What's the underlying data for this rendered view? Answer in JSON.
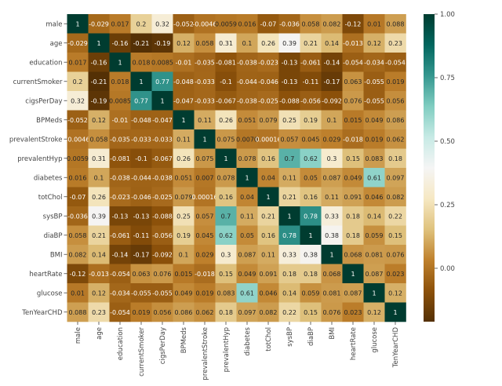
{
  "chart_data": {
    "type": "heatmap",
    "variables": [
      "male",
      "age",
      "education",
      "currentSmoker",
      "cigsPerDay",
      "BPMeds",
      "prevalentStroke",
      "prevalentHyp",
      "diabetes",
      "totChol",
      "sysBP",
      "diaBP",
      "BMI",
      "heartRate",
      "glucose",
      "TenYearCHD"
    ],
    "cell_labels": [
      [
        "1",
        "-0.029",
        "0.017",
        "0.2",
        "0.32",
        "-0.052",
        "-0.0046",
        "0.0059",
        "0.016",
        "-0.07",
        "-0.036",
        "0.058",
        "0.082",
        "-0.12",
        "0.01",
        "0.088"
      ],
      [
        "-0.029",
        "1",
        "-0.16",
        "-0.21",
        "-0.19",
        "0.12",
        "0.058",
        "0.31",
        "0.1",
        "0.26",
        "0.39",
        "0.21",
        "0.14",
        "-0.013",
        "0.12",
        "0.23"
      ],
      [
        "0.017",
        "-0.16",
        "1",
        "0.018",
        "0.0085",
        "-0.01",
        "-0.035",
        "-0.081",
        "-0.038",
        "-0.023",
        "-0.13",
        "-0.061",
        "-0.14",
        "-0.054",
        "-0.034",
        "-0.054"
      ],
      [
        "0.2",
        "-0.21",
        "0.018",
        "1",
        "0.77",
        "-0.048",
        "-0.033",
        "-0.1",
        "-0.044",
        "-0.046",
        "-0.13",
        "-0.11",
        "-0.17",
        "0.063",
        "-0.055",
        "0.019"
      ],
      [
        "0.32",
        "-0.19",
        "0.0085",
        "0.77",
        "1",
        "-0.047",
        "-0.033",
        "-0.067",
        "-0.038",
        "-0.025",
        "-0.088",
        "-0.056",
        "-0.092",
        "0.076",
        "-0.055",
        "0.056"
      ],
      [
        "-0.052",
        "0.12",
        "-0.01",
        "-0.048",
        "-0.047",
        "1",
        "0.11",
        "0.26",
        "0.051",
        "0.079",
        "0.25",
        "0.19",
        "0.1",
        "0.015",
        "0.049",
        "0.086"
      ],
      [
        "-0.0046",
        "0.058",
        "-0.035",
        "-0.033",
        "-0.033",
        "0.11",
        "1",
        "0.075",
        "0.0070",
        "0.00016",
        "0.057",
        "0.045",
        "0.029",
        "-0.018",
        "0.019",
        "0.062"
      ],
      [
        "0.0059",
        "0.31",
        "-0.081",
        "-0.1",
        "-0.067",
        "0.26",
        "0.075",
        "1",
        "0.078",
        "0.16",
        "0.7",
        "0.62",
        "0.3",
        "0.15",
        "0.083",
        "0.18"
      ],
      [
        "0.016",
        "0.1",
        "-0.038",
        "-0.044",
        "-0.038",
        "0.051",
        "0.007",
        "0.078",
        "1",
        "0.04",
        "0.11",
        "0.05",
        "0.087",
        "0.049",
        "0.61",
        "0.097"
      ],
      [
        "-0.07",
        "0.26",
        "-0.023",
        "-0.046",
        "-0.025",
        "0.079",
        "0.00016",
        "0.16",
        "0.04",
        "1",
        "0.21",
        "0.16",
        "0.11",
        "0.091",
        "0.046",
        "0.082"
      ],
      [
        "-0.036",
        "0.39",
        "-0.13",
        "-0.13",
        "-0.088",
        "0.25",
        "0.057",
        "0.7",
        "0.11",
        "0.21",
        "1",
        "0.78",
        "0.33",
        "0.18",
        "0.14",
        "0.22"
      ],
      [
        "0.058",
        "0.21",
        "-0.061",
        "-0.11",
        "-0.056",
        "0.19",
        "0.045",
        "0.62",
        "0.05",
        "0.16",
        "0.78",
        "1",
        "0.38",
        "0.18",
        "0.059",
        "0.15"
      ],
      [
        "0.082",
        "0.14",
        "-0.14",
        "-0.17",
        "-0.092",
        "0.1",
        "0.029",
        "0.3",
        "0.087",
        "0.11",
        "0.33",
        "0.38",
        "1",
        "0.068",
        "0.081",
        "0.076"
      ],
      [
        "-0.12",
        "-0.013",
        "-0.054",
        "0.063",
        "0.076",
        "0.015",
        "-0.018",
        "0.15",
        "0.049",
        "0.091",
        "0.18",
        "0.18",
        "0.068",
        "1",
        "0.087",
        "0.023"
      ],
      [
        "0.01",
        "0.12",
        "-0.034",
        "-0.055",
        "-0.055",
        "0.049",
        "0.019",
        "0.083",
        "0.61",
        "0.046",
        "0.14",
        "0.059",
        "0.081",
        "0.087",
        "1",
        "0.12"
      ],
      [
        "0.088",
        "0.23",
        "-0.054",
        "0.019",
        "0.056",
        "0.086",
        "0.062",
        "0.18",
        "0.097",
        "0.082",
        "0.22",
        "0.15",
        "0.076",
        "0.023",
        "0.12",
        "1"
      ]
    ],
    "colorbar": {
      "ticks": [
        "1.00",
        "0.75",
        "0.50",
        "0.25",
        "0.00"
      ],
      "tick_values": [
        1.0,
        0.75,
        0.5,
        0.25,
        0.0
      ],
      "range": [
        -0.21,
        1.0
      ],
      "colormap": "BrBG",
      "colormap_stops": [
        "#543005",
        "#8c510a",
        "#bf812d",
        "#dfc27d",
        "#f6e8c3",
        "#f5f5f5",
        "#c7eae5",
        "#80cdc1",
        "#35978f",
        "#01665e",
        "#003c30"
      ]
    },
    "annotation_colors": {
      "light_text": "#ffffff",
      "dark_text": "#262626"
    },
    "title": "",
    "xlabel": "",
    "ylabel": ""
  }
}
